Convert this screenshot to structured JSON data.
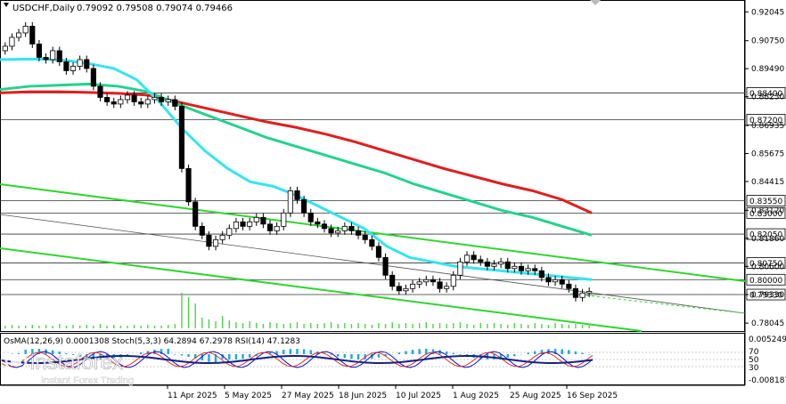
{
  "header": {
    "symbol": "USDCHF,Daily",
    "ohlc": "0.79092 0.79508 0.79074 0.79466"
  },
  "indicator_label": "OsMA(12,26,9) 0.0001308  Stoch(5,3,3) 64.2894 67.2978  RSI(14) 47.1283",
  "watermark": {
    "brand": "instaforex",
    "tagline": "Instant Forex Trading"
  },
  "colors": {
    "ma_fast": "#33e5f0",
    "ma_mid": "#22d38e",
    "ma_slow": "#e01e1e",
    "channel": "#2fd62f",
    "candle": "#000000",
    "volume": "#4fd14f",
    "osma": "#1aa7e8",
    "stoch_main": "#1010c0",
    "stoch_signal": "#e03030",
    "rsi": "#1a2080"
  },
  "chart_data": {
    "type": "candlestick",
    "y_ticks": [
      "0.92045",
      "0.90750",
      "0.89490",
      "0.88230",
      "0.86935",
      "0.85675",
      "0.84415",
      "0.83120",
      "0.81860",
      "0.80600",
      "0.79330",
      "0.78045"
    ],
    "ylim": [
      0.7785,
      0.923
    ],
    "x_ticks": [
      "11 Apr 2025",
      "5 May 2025",
      "27 May 2025",
      "18 Jun 2025",
      "10 Jul 2025",
      "1 Aug 2025",
      "25 Aug 2025",
      "16 Sep 2025"
    ],
    "levels": [
      "0.88400",
      "0.87200",
      "0.83550",
      "0.83000",
      "0.82050",
      "0.80750",
      "0.80000",
      "0.79330"
    ],
    "close_series": [
      0.905,
      0.909,
      0.911,
      0.914,
      0.906,
      0.9,
      0.899,
      0.903,
      0.898,
      0.894,
      0.896,
      0.899,
      0.895,
      0.887,
      0.882,
      0.88,
      0.879,
      0.881,
      0.883,
      0.88,
      0.879,
      0.881,
      0.882,
      0.88,
      0.881,
      0.878,
      0.85,
      0.835,
      0.824,
      0.82,
      0.815,
      0.818,
      0.82,
      0.823,
      0.826,
      0.824,
      0.826,
      0.828,
      0.825,
      0.822,
      0.824,
      0.83,
      0.84,
      0.836,
      0.83,
      0.826,
      0.825,
      0.823,
      0.821,
      0.822,
      0.824,
      0.822,
      0.82,
      0.818,
      0.815,
      0.81,
      0.802,
      0.797,
      0.795,
      0.796,
      0.798,
      0.799,
      0.8,
      0.799,
      0.796,
      0.797,
      0.802,
      0.808,
      0.811,
      0.809,
      0.808,
      0.806,
      0.807,
      0.808,
      0.805,
      0.806,
      0.804,
      0.805,
      0.804,
      0.801,
      0.799,
      0.8,
      0.798,
      0.796,
      0.792,
      0.794,
      0.7947
    ],
    "volume_series": [
      3,
      4,
      3,
      3,
      4,
      3,
      4,
      3,
      5,
      3,
      4,
      3,
      4,
      3,
      5,
      3,
      4,
      3,
      3,
      4,
      3,
      4,
      3,
      3,
      4,
      5,
      40,
      35,
      28,
      12,
      10,
      8,
      14,
      9,
      7,
      6,
      8,
      6,
      5,
      7,
      6,
      5,
      6,
      7,
      5,
      6,
      5,
      6,
      7,
      5,
      6,
      5,
      6,
      5,
      4,
      6,
      5,
      7,
      5,
      6,
      5,
      6,
      7,
      5,
      6,
      5,
      6,
      7,
      5,
      4,
      6,
      5,
      6,
      5,
      4,
      6,
      5,
      4,
      6,
      5,
      4,
      6,
      5,
      4,
      5,
      4,
      5
    ],
    "ma_fast": [
      0.899,
      0.8992,
      0.8992,
      0.8985,
      0.897,
      0.895,
      0.89,
      0.88,
      0.868,
      0.858,
      0.85,
      0.844,
      0.842,
      0.838,
      0.833,
      0.828,
      0.823,
      0.815,
      0.81,
      0.808,
      0.806,
      0.805,
      0.804,
      0.803,
      0.802,
      0.801,
      0.8
    ],
    "ma_mid": [
      0.8855,
      0.887,
      0.8875,
      0.888,
      0.887,
      0.8845,
      0.879,
      0.874,
      0.869,
      0.864,
      0.86,
      0.856,
      0.852,
      0.848,
      0.843,
      0.839,
      0.835,
      0.831,
      0.828,
      0.824,
      0.82
    ],
    "ma_slow": [
      0.884,
      0.8845,
      0.8845,
      0.8842,
      0.8838,
      0.883,
      0.88,
      0.877,
      0.874,
      0.871,
      0.8685,
      0.8655,
      0.862,
      0.858,
      0.854,
      0.85,
      0.8465,
      0.843,
      0.84,
      0.836,
      0.83
    ]
  }
}
